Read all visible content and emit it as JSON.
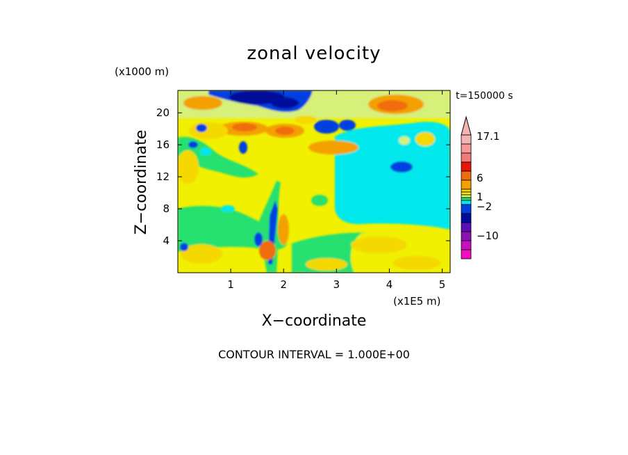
{
  "chart_data": {
    "type": "heatmap",
    "title": "zonal velocity",
    "xlabel": "X−coordinate",
    "ylabel": "Z−coordinate",
    "x_unit": "(x1E5 m)",
    "y_unit": "(x1000 m)",
    "time_label": "t=150000 s",
    "footer": "CONTOUR INTERVAL = 1.000E+00",
    "xlim": [
      0,
      5.15
    ],
    "ylim": [
      0,
      22.8
    ],
    "x_ticks": [
      1,
      2,
      3,
      4,
      5
    ],
    "y_ticks": [
      4,
      8,
      12,
      16,
      20
    ],
    "colorbar": {
      "labels": [
        "17.1",
        "6",
        "1",
        "−2",
        "−10"
      ],
      "bands_top_to_bottom": [
        "#f4b4b4",
        "#f49a9a",
        "#f07a7a",
        "#e8140a",
        "#f06c0c",
        "#f4a000",
        "#f4d800",
        "#f0f000",
        "#d6f07a",
        "#28e070",
        "#00e8ec",
        "#0040e0",
        "#000c9a",
        "#5a10b0",
        "#8c10b4",
        "#c410c0",
        "#f010c0"
      ]
    }
  }
}
